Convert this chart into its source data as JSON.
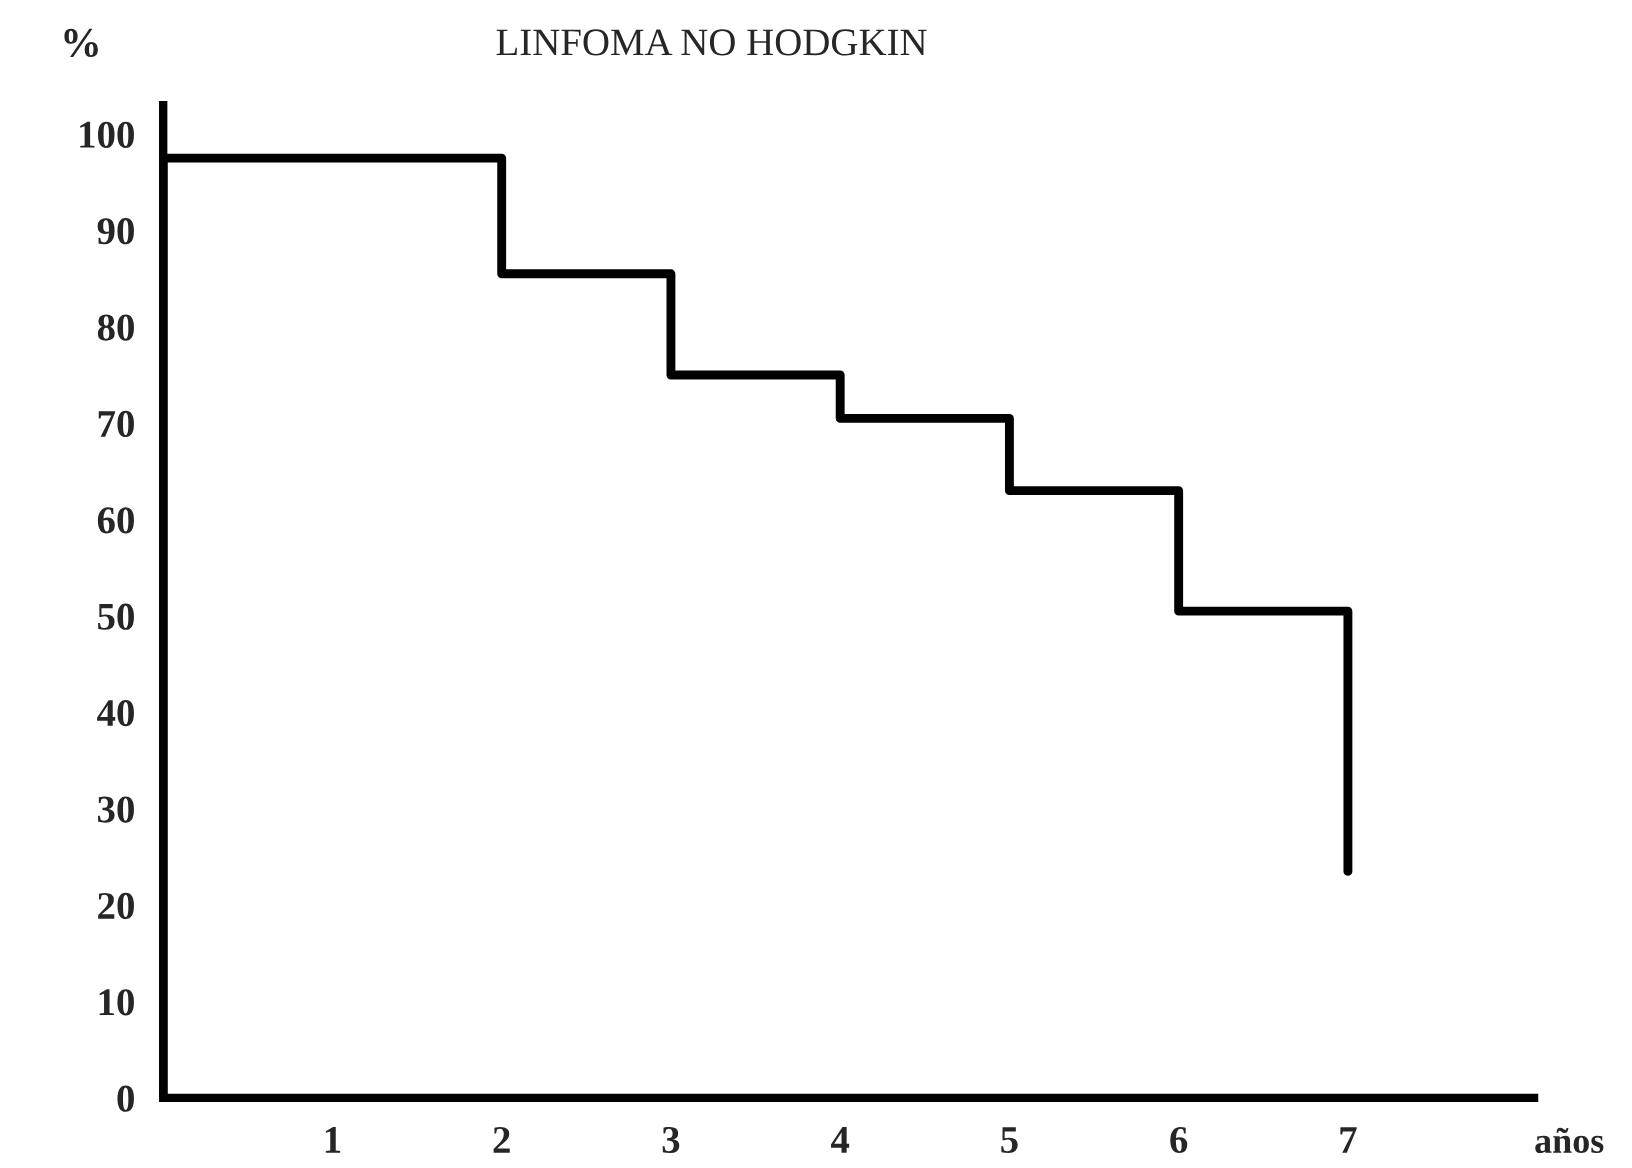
{
  "chart_data": {
    "type": "step",
    "title": "LINFOMA NO HODGKIN",
    "xlabel": "años",
    "ylabel": "%",
    "x": [
      0,
      0,
      2,
      3,
      4,
      5,
      6,
      7
    ],
    "values": [
      0,
      97.5,
      85.5,
      75,
      70.5,
      63,
      50.5,
      23.5
    ],
    "color": "#000000",
    "xlim": [
      0,
      8.1
    ],
    "xticks": [
      1,
      2,
      3,
      4,
      5,
      6,
      7
    ],
    "ylim": [
      0,
      103
    ],
    "yticks": [
      0,
      10,
      20,
      30,
      40,
      50,
      60,
      70,
      80,
      90,
      100
    ],
    "grid": false,
    "line_style": "solid",
    "marker": "none"
  }
}
